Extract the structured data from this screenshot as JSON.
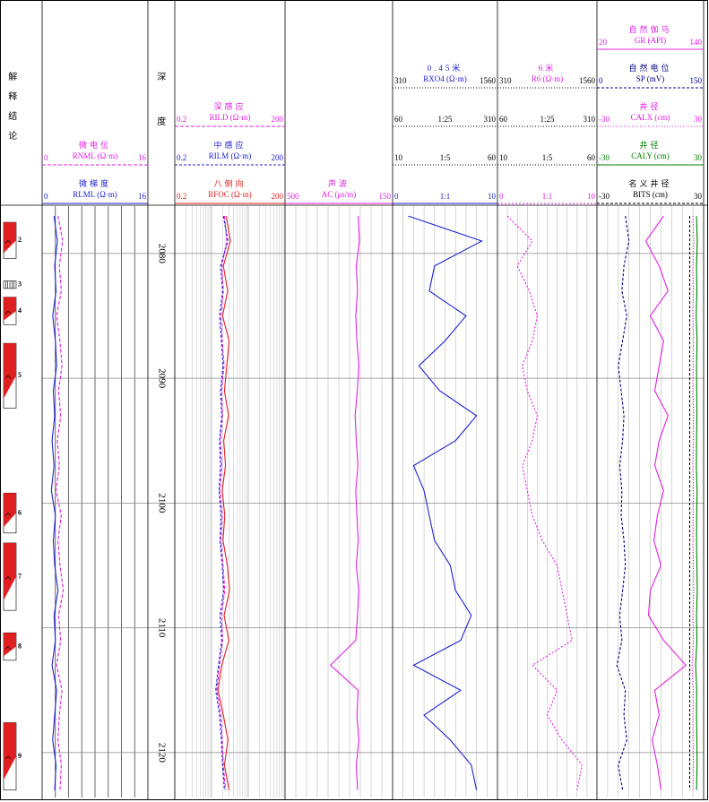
{
  "chart_data": {
    "type": "log",
    "interpretation_title": "解释结论",
    "depth_title": "深度",
    "ylim": [
      2076.2,
      2123.6
    ],
    "yticks": [
      2080,
      2090,
      2100,
      2110,
      2120
    ],
    "depths": [
      2077,
      2079,
      2081,
      2083,
      2085,
      2087,
      2089,
      2091,
      2093,
      2095,
      2097,
      2099,
      2101,
      2103,
      2105,
      2107,
      2109,
      2111,
      2113,
      2115,
      2117,
      2119,
      2121,
      2123
    ],
    "layers": [
      {
        "label": "2",
        "top": 2077.5,
        "bottom": 2080.4
      },
      {
        "label": "3",
        "top": 2082.2,
        "bottom": 2082.8,
        "pattern": "stripe"
      },
      {
        "label": "4",
        "top": 2083.5,
        "bottom": 2085.7
      },
      {
        "label": "5",
        "top": 2087.2,
        "bottom": 2092.4
      },
      {
        "label": "6",
        "top": 2099.2,
        "bottom": 2102.4
      },
      {
        "label": "7",
        "top": 2103.2,
        "bottom": 2108.6
      },
      {
        "label": "8",
        "top": 2110.4,
        "bottom": 2112.6
      },
      {
        "label": "9",
        "top": 2117.6,
        "bottom": 2123.0
      }
    ],
    "tracks": [
      {
        "curves": [
          {
            "title": "微电位",
            "name": "RNML (Ω·m)",
            "xlim": [
              0,
              16
            ],
            "color": "#e020e0",
            "dash": "4 2",
            "values": [
              2.4,
              3.1,
              2.6,
              2.9,
              2.2,
              2.7,
              3.0,
              2.5,
              2.8,
              2.3,
              2.6,
              2.1,
              2.9,
              2.4,
              2.7,
              3.2,
              2.5,
              2.8,
              2.2,
              3.0,
              2.6,
              2.4,
              2.9,
              2.7
            ]
          },
          {
            "title": "微梯度",
            "name": "RLML (Ω·m)",
            "xlim": [
              0,
              16
            ],
            "color": "#2020d0",
            "dash": "none",
            "values": [
              1.8,
              2.3,
              1.9,
              2.1,
              1.6,
              2.0,
              2.2,
              1.7,
              1.9,
              1.5,
              1.8,
              1.4,
              2.0,
              1.7,
              1.9,
              2.4,
              1.8,
              2.0,
              1.5,
              2.2,
              1.9,
              1.6,
              2.1,
              1.9
            ]
          }
        ]
      },
      {
        "log": true,
        "curves": [
          {
            "title": "深感应",
            "name": "RILD (Ω·m)",
            "xlim": [
              0.2,
              200
            ],
            "color": "#e020e0",
            "dash": "4 2",
            "values": [
              4.5,
              5.2,
              3.8,
              4.2,
              3.6,
              3.9,
              4.4,
              3.7,
              4.0,
              3.5,
              3.8,
              3.4,
              3.9,
              3.6,
              4.1,
              4.6,
              3.7,
              4.0,
              3.3,
              2.8,
              3.6,
              3.9,
              4.2,
              4.8
            ]
          },
          {
            "title": "中感应",
            "name": "RILM (Ω·m)",
            "xlim": [
              0.2,
              200
            ],
            "color": "#2020d0",
            "dash": "3 2",
            "values": [
              4.2,
              5.6,
              3.5,
              4.0,
              3.3,
              3.7,
              4.1,
              3.5,
              3.8,
              3.3,
              3.5,
              3.2,
              3.6,
              3.4,
              3.9,
              4.3,
              3.4,
              3.8,
              3.1,
              2.6,
              3.3,
              3.7,
              4.0,
              4.5
            ]
          },
          {
            "title": "八侧向",
            "name": "RFOC (Ω·m)",
            "xlim": [
              0.2,
              200
            ],
            "color": "#e02020",
            "dash": "none",
            "values": [
              5.0,
              6.5,
              4.2,
              5.5,
              4.0,
              6.0,
              5.2,
              4.5,
              5.8,
              4.3,
              4.8,
              3.9,
              4.6,
              4.1,
              5.4,
              6.2,
              4.4,
              5.9,
              3.8,
              3.0,
              4.2,
              5.6,
              4.5,
              6.0
            ]
          }
        ]
      },
      {
        "curves": [
          {
            "title": "声波",
            "name": "AC (μs/m)",
            "xlim": [
              500,
              150
            ],
            "color": "#e020e0",
            "dash": "none",
            "values": [
              262,
              258,
              268,
              264,
              270,
              266,
              260,
              265,
              272,
              268,
              263,
              270,
              266,
              262,
              268,
              260,
              264,
              270,
              352,
              262,
              266,
              260,
              268,
              264
            ]
          }
        ]
      },
      {
        "curves": [
          {
            "title": "0.45米",
            "name": "RXO4 (Ω·m)",
            "color": "#2020d0",
            "dash": "none",
            "scales": [
              {
                "xlim": [
                  310,
                  1560
                ]
              },
              {
                "ratio": "1:25",
                "xlim": [
                  60,
                  310
                ]
              },
              {
                "ratio": "1:5",
                "xlim": [
                  10,
                  60
                ]
              },
              {
                "ratio": "1:1",
                "xlim": [
                  0,
                  10
                ]
              }
            ],
            "values": [
              1.5,
              8.5,
              4.0,
              3.5,
              7.0,
              5.0,
              2.5,
              4.5,
              8.0,
              6.0,
              2.0,
              3.0,
              3.5,
              4.0,
              5.5,
              6.0,
              7.5,
              6.5,
              2.0,
              6.5,
              3.0,
              5.5,
              7.5,
              8.0
            ]
          }
        ]
      },
      {
        "curves": [
          {
            "title": "6米",
            "name": "R6 (Ω·m)",
            "color": "#e020e0",
            "dash": "2 2",
            "scales": [
              {
                "xlim": [
                  310,
                  1560
                ]
              },
              {
                "ratio": "1:25",
                "xlim": [
                  60,
                  310
                ]
              },
              {
                "ratio": "1:5",
                "xlim": [
                  10,
                  60
                ]
              },
              {
                "ratio": "1:1",
                "xlim": [
                  0,
                  10
                ]
              }
            ],
            "values": [
              1.0,
              3.5,
              2.0,
              3.2,
              4.0,
              3.5,
              2.5,
              3.0,
              4.0,
              3.5,
              2.5,
              3.0,
              3.5,
              4.5,
              6.0,
              6.5,
              7.0,
              7.5,
              3.5,
              6.0,
              5.0,
              6.5,
              8.5,
              8.0
            ]
          }
        ]
      },
      {
        "curves": [
          {
            "title": "自然伽马",
            "name": "GR (API)",
            "xlim": [
              20,
              140
            ],
            "color": "#e020e0",
            "dash": "none",
            "values": [
              95,
              75,
              90,
              100,
              80,
              95,
              90,
              85,
              100,
              90,
              85,
              95,
              88,
              84,
              92,
              80,
              78,
              95,
              120,
              85,
              90,
              82,
              88,
              92
            ]
          },
          {
            "title": "自然电位",
            "name": "SP (mV)",
            "xlim": [
              0,
              150
            ],
            "color": "#000080",
            "dash": "3 2",
            "values": [
              40,
              45,
              38,
              35,
              42,
              36,
              30,
              34,
              38,
              36,
              32,
              35,
              34,
              38,
              40,
              36,
              32,
              35,
              28,
              40,
              38,
              42,
              30,
              36
            ]
          },
          {
            "title": "井径",
            "name": "CALX (cm)",
            "xlim": [
              -30,
              30
            ],
            "color": "#e020e0",
            "dash": "1 2",
            "values": [
              24,
              24.5,
              24,
              24.2,
              24,
              24.3,
              24.1,
              24,
              24.4,
              24.2,
              24,
              24.3,
              24.1,
              24,
              24.2,
              24.4,
              24,
              24.3,
              23.5,
              24.2,
              24,
              24.1,
              24.3,
              24
            ]
          },
          {
            "title": "井径",
            "name": "CALY (cm)",
            "xlim": [
              -30,
              30
            ],
            "color": "#008000",
            "dash": "none",
            "values": [
              26,
              26.4,
              26,
              26.2,
              25.8,
              26.3,
              26,
              26.1,
              26.2,
              26,
              25.9,
              26.3,
              26.1,
              26,
              26.2,
              26.4,
              26,
              26.2,
              25.5,
              26.1,
              26,
              26.2,
              26.3,
              26
            ]
          },
          {
            "title": "名义井径",
            "name": "BITS (cm)",
            "xlim": [
              -30,
              30
            ],
            "color": "#000000",
            "dash": "3 2",
            "values": [
              22.2,
              22.2,
              22.2,
              22.2,
              22.2,
              22.2,
              22.2,
              22.2,
              22.2,
              22.2,
              22.2,
              22.2,
              22.2,
              22.2,
              22.2,
              22.2,
              22.2,
              22.2,
              22.2,
              22.2,
              22.2,
              22.2,
              22.2,
              22.2
            ]
          }
        ]
      }
    ]
  }
}
